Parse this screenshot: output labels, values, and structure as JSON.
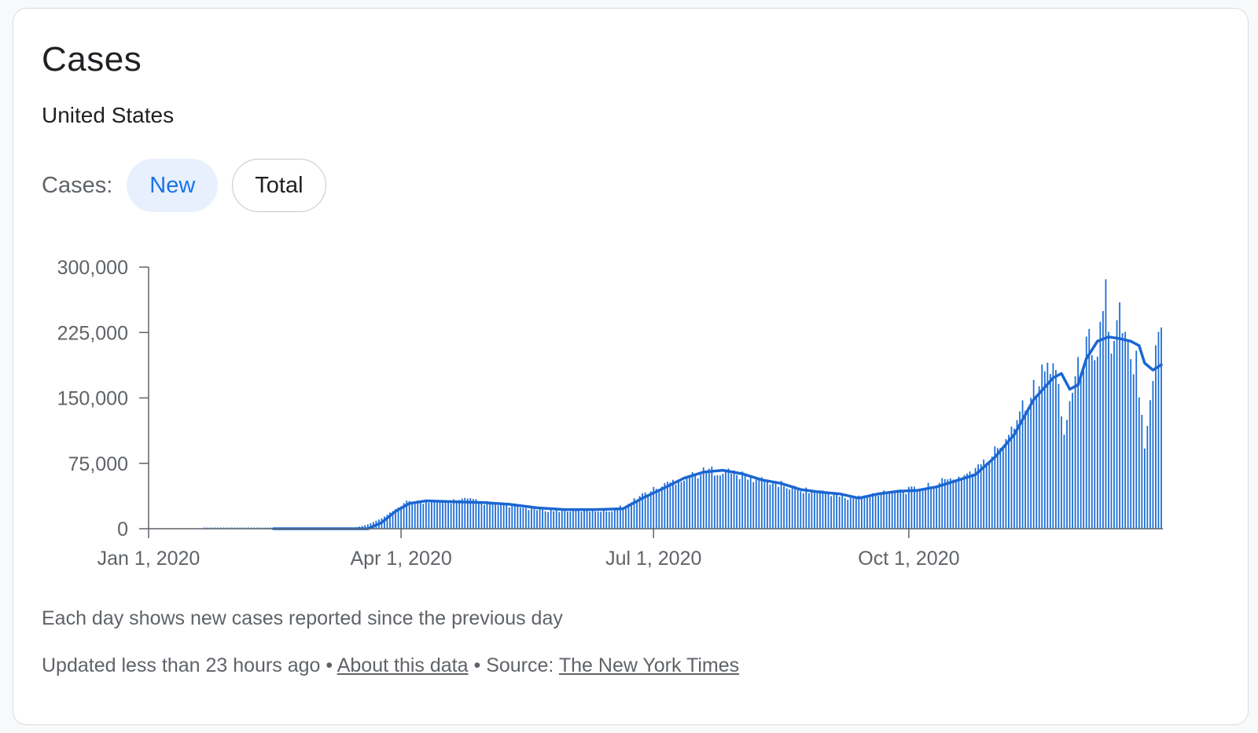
{
  "card": {
    "title": "Cases",
    "subtitle": "United States",
    "toggle": {
      "label": "Cases:",
      "options": [
        "New",
        "Total"
      ],
      "selected": "New"
    },
    "note": "Each day shows new cases reported since the previous day",
    "footer": {
      "updated": "Updated less than 23 hours ago",
      "separator": "•",
      "about_link": "About this data",
      "source_label": "Source:",
      "source_link": "The New York Times"
    }
  },
  "colors": {
    "accent": "#1a73e8",
    "bar": "#1f6fd6",
    "line": "#1a66d2",
    "axis": "#5f6368",
    "pill_active_bg": "#e8f0fe"
  },
  "chart_data": {
    "type": "bar",
    "title": "",
    "xlabel": "",
    "ylabel": "",
    "x_type": "date",
    "x_start": "2020-01-01",
    "x_end": "2020-12-31",
    "ylim": [
      0,
      300000
    ],
    "y_ticks": [
      0,
      75000,
      150000,
      225000,
      300000
    ],
    "y_tick_labels": [
      "0",
      "75,000",
      "150,000",
      "225,000",
      "300,000"
    ],
    "x_ticks": [
      "2020-01-01",
      "2020-04-01",
      "2020-07-01",
      "2020-10-01"
    ],
    "x_tick_labels": [
      "Jan 1, 2020",
      "Apr 1, 2020",
      "Jul 1, 2020",
      "Oct 1, 2020"
    ],
    "legend": "none",
    "grid": false,
    "series": [
      {
        "type": "bar",
        "points": [
          [
            "2020-01-21",
            0
          ],
          [
            "2020-03-01",
            0
          ],
          [
            "2020-03-10",
            300
          ],
          [
            "2020-03-15",
            800
          ],
          [
            "2020-03-20",
            5000
          ],
          [
            "2020-03-25",
            12000
          ],
          [
            "2020-03-29",
            20000
          ],
          [
            "2020-04-03",
            30000
          ],
          [
            "2020-04-08",
            32000
          ],
          [
            "2020-04-12",
            30000
          ],
          [
            "2020-04-17",
            31000
          ],
          [
            "2020-04-24",
            34000
          ],
          [
            "2020-05-01",
            30000
          ],
          [
            "2020-05-08",
            27000
          ],
          [
            "2020-05-15",
            24000
          ],
          [
            "2020-05-25",
            21000
          ],
          [
            "2020-06-05",
            21000
          ],
          [
            "2020-06-15",
            21000
          ],
          [
            "2020-06-22",
            28000
          ],
          [
            "2020-06-26",
            38000
          ],
          [
            "2020-07-01",
            45000
          ],
          [
            "2020-07-08",
            55000
          ],
          [
            "2020-07-15",
            62000
          ],
          [
            "2020-07-22",
            68000
          ],
          [
            "2020-07-29",
            65000
          ],
          [
            "2020-08-05",
            58000
          ],
          [
            "2020-08-12",
            55000
          ],
          [
            "2020-08-19",
            48000
          ],
          [
            "2020-08-26",
            44000
          ],
          [
            "2020-09-02",
            42000
          ],
          [
            "2020-09-09",
            35000
          ],
          [
            "2020-09-16",
            38000
          ],
          [
            "2020-09-23",
            44000
          ],
          [
            "2020-09-30",
            44000
          ],
          [
            "2020-10-07",
            48000
          ],
          [
            "2020-10-14",
            55000
          ],
          [
            "2020-10-21",
            62000
          ],
          [
            "2020-10-28",
            75000
          ],
          [
            "2020-11-04",
            100000
          ],
          [
            "2020-11-08",
            125000
          ],
          [
            "2020-11-12",
            150000
          ],
          [
            "2020-11-16",
            165000
          ],
          [
            "2020-11-20",
            190000
          ],
          [
            "2020-11-24",
            175000
          ],
          [
            "2020-11-26",
            108000
          ],
          [
            "2020-11-28",
            150000
          ],
          [
            "2020-12-02",
            195000
          ],
          [
            "2020-12-05",
            215000
          ],
          [
            "2020-12-08",
            210000
          ],
          [
            "2020-12-11",
            280000
          ],
          [
            "2020-12-13",
            195000
          ],
          [
            "2020-12-16",
            245000
          ],
          [
            "2020-12-20",
            190000
          ],
          [
            "2020-12-22",
            200000
          ],
          [
            "2020-12-25",
            100000
          ],
          [
            "2020-12-27",
            155000
          ],
          [
            "2020-12-29",
            200000
          ],
          [
            "2020-12-30",
            230000
          ],
          [
            "2020-12-31",
            232000
          ]
        ]
      },
      {
        "type": "line",
        "points": [
          [
            "2020-02-15",
            0
          ],
          [
            "2020-03-20",
            0
          ],
          [
            "2020-03-25",
            7000
          ],
          [
            "2020-03-30",
            20000
          ],
          [
            "2020-04-04",
            29000
          ],
          [
            "2020-04-10",
            32000
          ],
          [
            "2020-04-20",
            31000
          ],
          [
            "2020-05-01",
            30000
          ],
          [
            "2020-05-10",
            28000
          ],
          [
            "2020-05-20",
            24000
          ],
          [
            "2020-05-30",
            22000
          ],
          [
            "2020-06-10",
            22000
          ],
          [
            "2020-06-20",
            23000
          ],
          [
            "2020-06-27",
            35000
          ],
          [
            "2020-07-05",
            47000
          ],
          [
            "2020-07-12",
            58000
          ],
          [
            "2020-07-19",
            65000
          ],
          [
            "2020-07-26",
            67000
          ],
          [
            "2020-08-02",
            63000
          ],
          [
            "2020-08-09",
            56000
          ],
          [
            "2020-08-16",
            52000
          ],
          [
            "2020-08-23",
            45000
          ],
          [
            "2020-08-30",
            42000
          ],
          [
            "2020-09-06",
            40000
          ],
          [
            "2020-09-13",
            35000
          ],
          [
            "2020-09-20",
            40000
          ],
          [
            "2020-09-27",
            43000
          ],
          [
            "2020-10-04",
            44000
          ],
          [
            "2020-10-11",
            48000
          ],
          [
            "2020-10-18",
            55000
          ],
          [
            "2020-10-25",
            62000
          ],
          [
            "2020-11-01",
            82000
          ],
          [
            "2020-11-08",
            108000
          ],
          [
            "2020-11-15",
            148000
          ],
          [
            "2020-11-22",
            173000
          ],
          [
            "2020-11-25",
            178000
          ],
          [
            "2020-11-28",
            160000
          ],
          [
            "2020-12-01",
            165000
          ],
          [
            "2020-12-04",
            195000
          ],
          [
            "2020-12-08",
            215000
          ],
          [
            "2020-12-12",
            220000
          ],
          [
            "2020-12-16",
            218000
          ],
          [
            "2020-12-20",
            215000
          ],
          [
            "2020-12-23",
            210000
          ],
          [
            "2020-12-25",
            190000
          ],
          [
            "2020-12-28",
            182000
          ],
          [
            "2020-12-31",
            188000
          ]
        ]
      }
    ]
  }
}
